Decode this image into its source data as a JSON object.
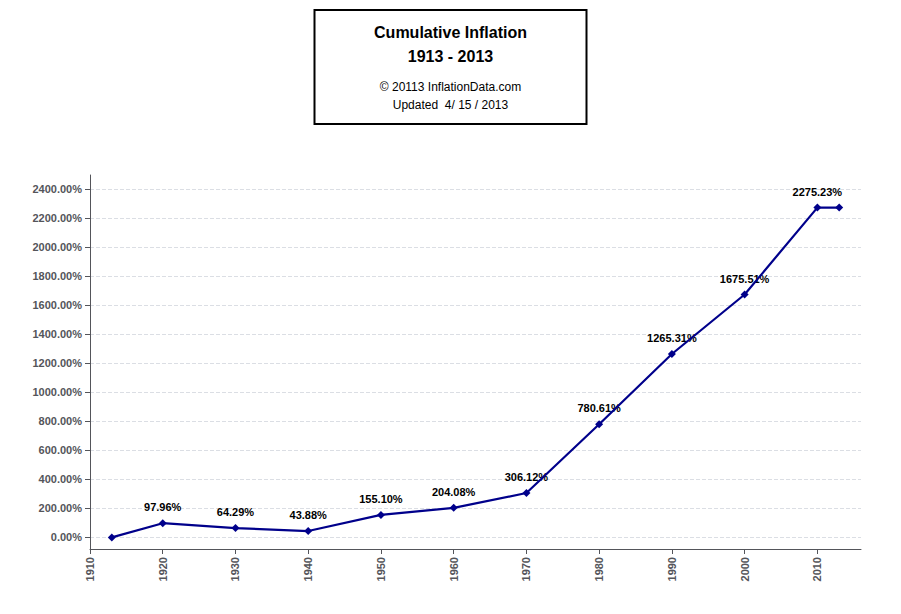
{
  "chart_data": {
    "type": "line",
    "title": [
      "Cumulative Inflation",
      "1913 - 2013"
    ],
    "subtitle": [
      "© 20113 InflationData.com",
      "Updated  4/ 15 / 2013"
    ],
    "x": [
      1913,
      1920,
      1930,
      1940,
      1950,
      1960,
      1970,
      1980,
      1990,
      2000,
      2010,
      2013
    ],
    "values": [
      0.0,
      97.96,
      64.29,
      43.88,
      155.1,
      204.08,
      306.12,
      780.61,
      1265.31,
      1675.51,
      2275.23,
      2275.23
    ],
    "color": "#00008B",
    "marker": "diamond",
    "xlim": [
      1910,
      2016
    ],
    "xticks": [
      1910,
      1920,
      1930,
      1940,
      1950,
      1960,
      1970,
      1980,
      1990,
      2000,
      2010
    ],
    "ylim": [
      -80,
      2500
    ],
    "yticks": [
      {
        "value": 0,
        "label": "0.00%"
      },
      {
        "value": 200,
        "label": "200.00%"
      },
      {
        "value": 400,
        "label": "400.00%"
      },
      {
        "value": 600,
        "label": "600.00%"
      },
      {
        "value": 800,
        "label": "800.00%"
      },
      {
        "value": 1000,
        "label": "1000.00%"
      },
      {
        "value": 1200,
        "label": "1200.00%"
      },
      {
        "value": 1400,
        "label": "1400.00%"
      },
      {
        "value": 1600,
        "label": "1600.00%"
      },
      {
        "value": 1800,
        "label": "1800.00%"
      },
      {
        "value": 2000,
        "label": "2000.00%"
      },
      {
        "value": 2200,
        "label": "2200.00%"
      },
      {
        "value": 2400,
        "label": "2400.00%"
      }
    ],
    "grid": true,
    "annotations": [
      {
        "x": 1920,
        "y": 97.96,
        "label": "97.96%"
      },
      {
        "x": 1930,
        "y": 64.29,
        "label": "64.29%"
      },
      {
        "x": 1940,
        "y": 43.88,
        "label": "43.88%"
      },
      {
        "x": 1950,
        "y": 155.1,
        "label": "155.10%"
      },
      {
        "x": 1960,
        "y": 204.08,
        "label": "204.08%"
      },
      {
        "x": 1970,
        "y": 306.12,
        "label": "306.12%"
      },
      {
        "x": 1980,
        "y": 780.61,
        "label": "780.61%"
      },
      {
        "x": 1990,
        "y": 1265.31,
        "label": "1265.31%"
      },
      {
        "x": 2000,
        "y": 1675.51,
        "label": "1675.51%"
      },
      {
        "x": 2010,
        "y": 2275.23,
        "label": "2275.23%"
      }
    ]
  }
}
